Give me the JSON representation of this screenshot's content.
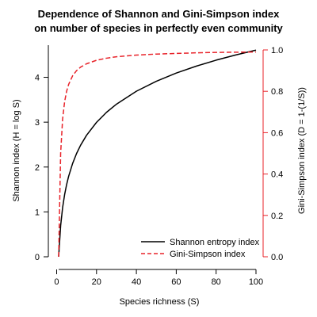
{
  "chart_data": {
    "type": "line",
    "title": [
      "Dependence of Shannon and Gini-Simpson index",
      "on number of species in perfectly even community"
    ],
    "xlabel": "Species richness (S)",
    "ylabel_left": "Shannon index (H = log S)",
    "ylabel_right": "Gini-Simpson index (D = 1-(1/S))",
    "xlim": [
      1,
      100
    ],
    "ylim_left": [
      0,
      4.61
    ],
    "ylim_right": [
      0,
      1
    ],
    "x_ticks": [
      "0",
      "20",
      "40",
      "60",
      "80",
      "100"
    ],
    "y_left_ticks": [
      "0",
      "1",
      "2",
      "3",
      "4"
    ],
    "y_right_ticks": [
      "0.0",
      "0.2",
      "0.4",
      "0.6",
      "0.8",
      "1.0"
    ],
    "legend_position": "bottom-right",
    "colors": {
      "shannon": "#000000",
      "gini": "#e8232a"
    },
    "series": [
      {
        "name": "Shannon entropy index",
        "axis": "left",
        "style": "solid",
        "x": [
          1,
          2,
          3,
          4,
          5,
          6,
          8,
          10,
          12,
          15,
          20,
          25,
          30,
          40,
          50,
          60,
          70,
          80,
          90,
          100
        ],
        "y": [
          0.0,
          0.693,
          1.099,
          1.386,
          1.609,
          1.792,
          2.079,
          2.303,
          2.485,
          2.708,
          2.996,
          3.219,
          3.401,
          3.689,
          3.912,
          4.094,
          4.248,
          4.382,
          4.5,
          4.605
        ]
      },
      {
        "name": "Gini-Simpson index",
        "axis": "right",
        "style": "dashed",
        "x": [
          1,
          2,
          3,
          4,
          5,
          6,
          8,
          10,
          12,
          15,
          20,
          25,
          30,
          40,
          50,
          60,
          70,
          80,
          90,
          100
        ],
        "y": [
          0.0,
          0.5,
          0.667,
          0.75,
          0.8,
          0.833,
          0.875,
          0.9,
          0.917,
          0.933,
          0.95,
          0.96,
          0.967,
          0.975,
          0.98,
          0.983,
          0.986,
          0.988,
          0.989,
          0.99
        ]
      }
    ]
  }
}
